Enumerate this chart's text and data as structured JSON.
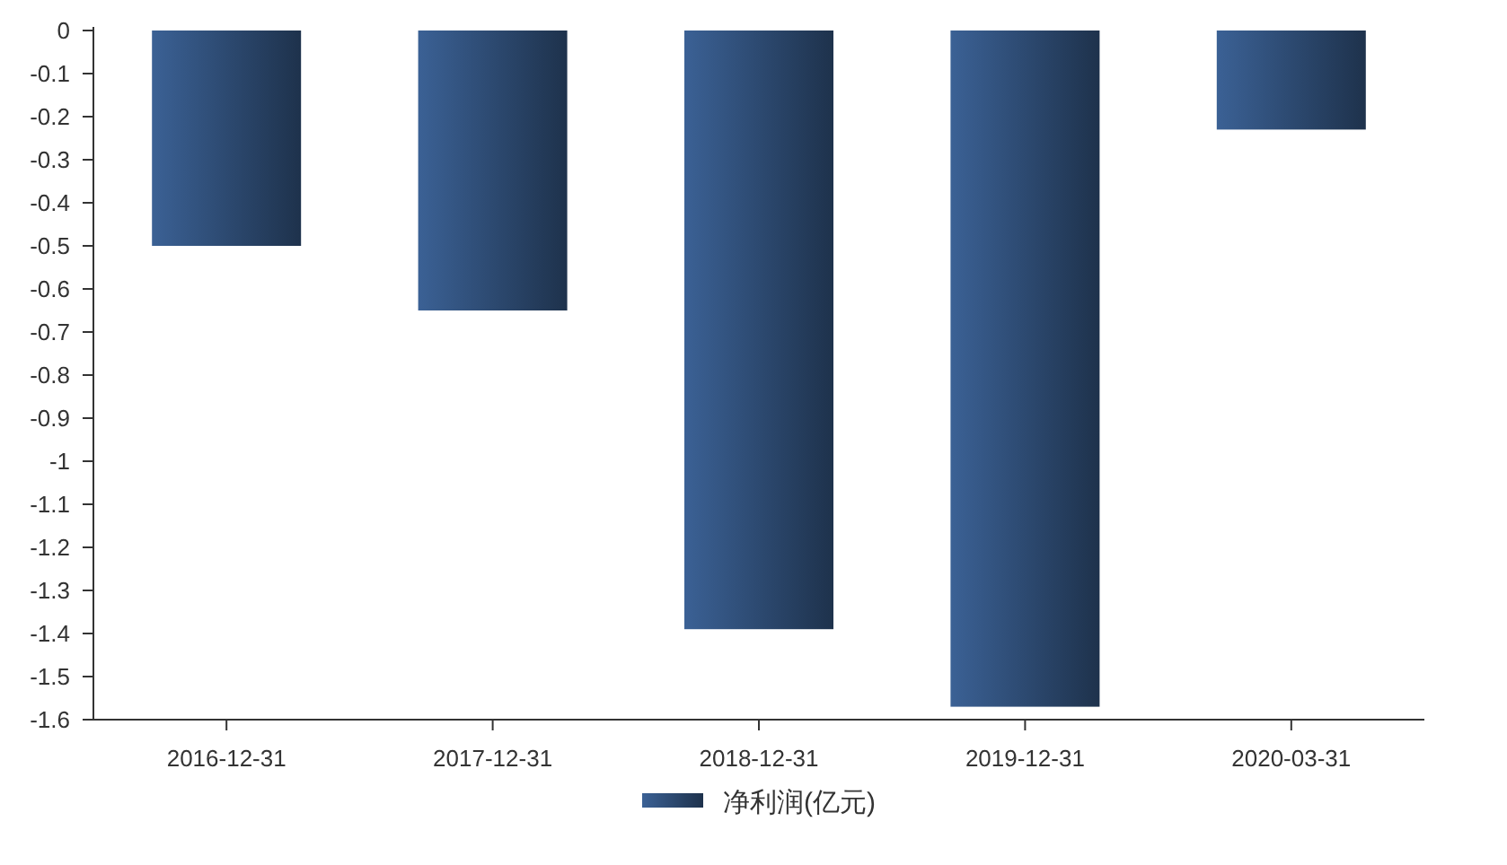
{
  "chart_data": {
    "type": "bar",
    "categories": [
      "2016-12-31",
      "2017-12-31",
      "2018-12-31",
      "2019-12-31",
      "2020-03-31"
    ],
    "series": [
      {
        "name": "净利润(亿元)",
        "color": "#2c4970",
        "values": [
          -0.5,
          -0.65,
          -1.39,
          -1.57,
          -0.23
        ]
      }
    ],
    "ylim": [
      -1.6,
      0
    ],
    "yticks": [
      0,
      -0.1,
      -0.2,
      -0.3,
      -0.4,
      -0.5,
      -0.6,
      -0.7,
      -0.8,
      -0.9,
      -1,
      -1.1,
      -1.2,
      -1.3,
      -1.4,
      -1.5,
      -1.6
    ],
    "grid": false,
    "legend": "bottom"
  }
}
